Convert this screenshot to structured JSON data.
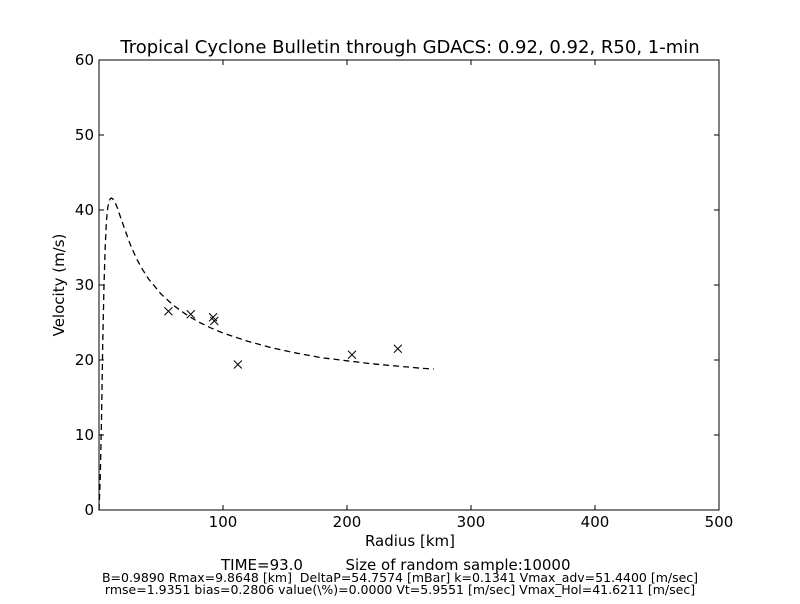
{
  "chart_data": {
    "type": "scatter",
    "title": "Tropical Cyclone Bulletin through GDACS: 0.92, 0.92, R50, 1-min",
    "xlabel": "Radius [km]",
    "ylabel": "Velocity (m/s)",
    "xlim": [
      0,
      500
    ],
    "ylim": [
      0,
      60
    ],
    "xticks": [
      100,
      200,
      300,
      400,
      500
    ],
    "yticks": [
      0,
      10,
      20,
      30,
      40,
      50,
      60
    ],
    "grid": false,
    "legend": "none",
    "series": [
      {
        "style": "dashed-line",
        "color": "#000000",
        "x": [
          0,
          1,
          2,
          3,
          4,
          5,
          6,
          7,
          8,
          9,
          10,
          11,
          12,
          13,
          15,
          17,
          20,
          25,
          30,
          35,
          40,
          50,
          60,
          70,
          80,
          90,
          100,
          120,
          140,
          160,
          180,
          200,
          220,
          240,
          260,
          270
        ],
        "y": [
          0,
          4,
          12,
          22,
          30,
          35,
          38.5,
          40.3,
          41.1,
          41.5,
          41.6,
          41.5,
          41.3,
          41,
          40.2,
          39.2,
          37.8,
          35.5,
          33.6,
          32.1,
          30.8,
          28.8,
          27.3,
          26.1,
          25.1,
          24.3,
          23.6,
          22.5,
          21.6,
          20.9,
          20.3,
          19.9,
          19.5,
          19.2,
          18.9,
          18.8
        ]
      },
      {
        "style": "x-markers",
        "color": "#000000",
        "x": [
          56,
          74,
          92,
          93,
          112,
          204,
          241
        ],
        "y": [
          26.5,
          26.1,
          25.7,
          25.2,
          19.4,
          20.7,
          21.5
        ]
      }
    ]
  },
  "footer": {
    "line1_time": "TIME=93.0",
    "line1_sample": "Size of random sample:10000",
    "line2": "B=0.9890 Rmax=9.8648 [km]  DeltaP=54.7574 [mBar] k=0.1341 Vmax_adv=51.4400 [m/sec]",
    "line3": "rmse=1.9351 bias=0.2806 value(\\%)=0.0000 Vt=5.9551 [m/sec] Vmax_Hol=41.6211 [m/sec]"
  }
}
